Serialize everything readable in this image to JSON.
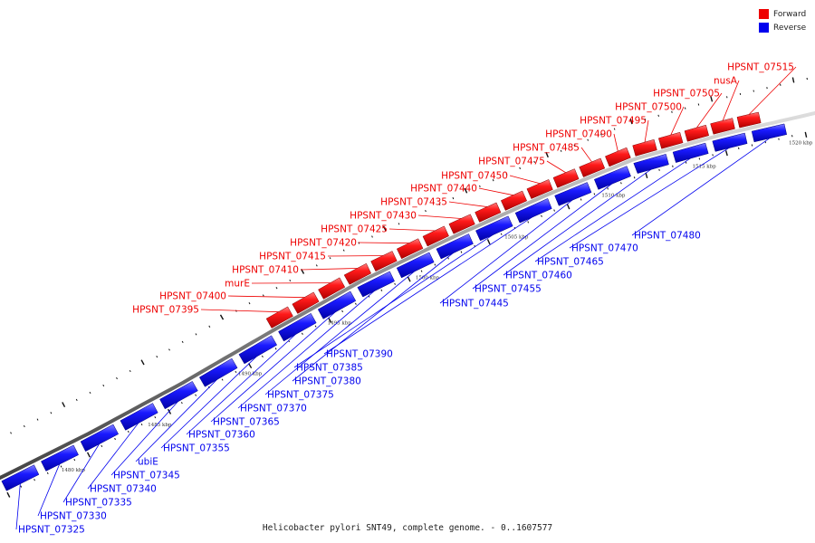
{
  "legend": {
    "forward": {
      "label": "Forward",
      "color": "#ee0000"
    },
    "reverse": {
      "label": "Reverse",
      "color": "#0000ee"
    }
  },
  "caption": "Helicobacter pylori SNT49, complete genome. - 0..1607577",
  "axis_labels": [
    "1480 kbp",
    "1485 kbp",
    "1490 kbp",
    "1495 kbp",
    "1500 kbp",
    "1505 kbp",
    "1510 kbp",
    "1515 kbp",
    "1520 kbp"
  ],
  "genes_forward": [
    "HPSNT_07395",
    "HPSNT_07400",
    "murE",
    "HPSNT_07410",
    "HPSNT_07415",
    "HPSNT_07420",
    "HPSNT_07425",
    "HPSNT_07430",
    "HPSNT_07435",
    "HPSNT_07440",
    "HPSNT_07450",
    "HPSNT_07475",
    "HPSNT_07485",
    "HPSNT_07490",
    "HPSNT_07495",
    "HPSNT_07500",
    "HPSNT_07505",
    "nusA",
    "HPSNT_07515"
  ],
  "genes_reverse": [
    "HPSNT_07325",
    "HPSNT_07330",
    "HPSNT_07335",
    "HPSNT_07340",
    "HPSNT_07345",
    "ubiE",
    "HPSNT_07355",
    "HPSNT_07360",
    "HPSNT_07365",
    "HPSNT_07370",
    "HPSNT_07375",
    "HPSNT_07380",
    "HPSNT_07385",
    "HPSNT_07390",
    "HPSNT_07445",
    "HPSNT_07455",
    "HPSNT_07460",
    "HPSNT_07465",
    "HPSNT_07470",
    "HPSNT_07480"
  ]
}
